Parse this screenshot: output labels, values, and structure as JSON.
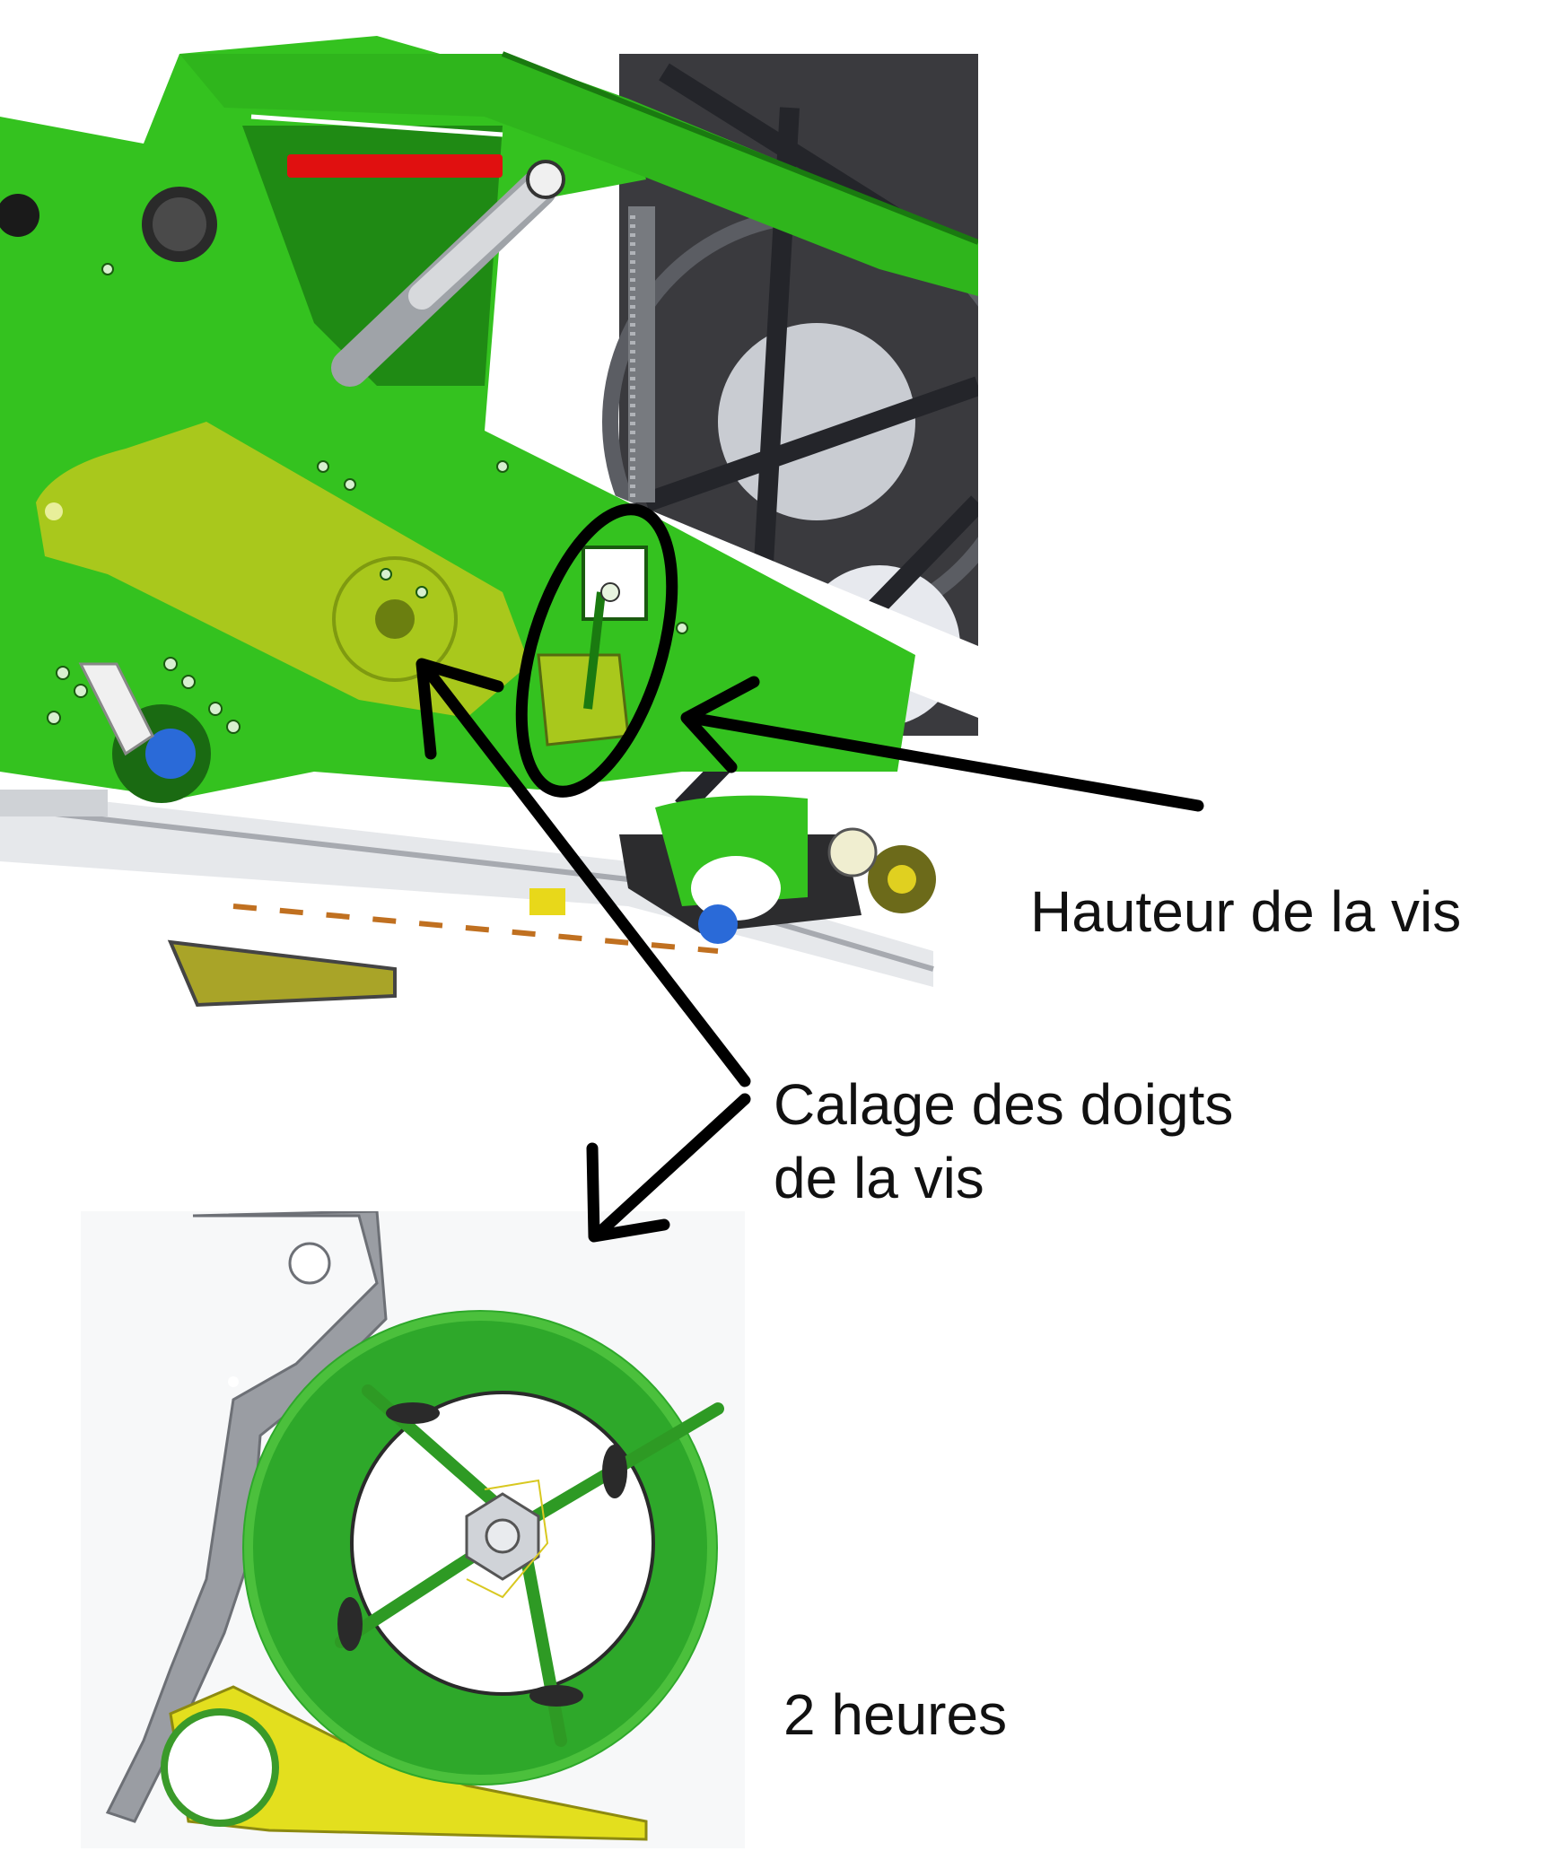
{
  "labels": {
    "auger_height": "Hauteur de la vis",
    "finger_timing_line1": "Calage des doigts",
    "finger_timing_line2": "de la vis",
    "finger_position": "2 heures"
  },
  "colors": {
    "frame_green": "#34c21f",
    "dark_green": "#1f8a14",
    "arm_yellow": "#a9c81c",
    "grey_steel": "#3a3a3e",
    "red_marker": "#e01010",
    "callout_black": "#000000",
    "detail_green": "#2ea82a",
    "detail_grey": "#9a9da3",
    "detail_yellow": "#e3df1e"
  },
  "icons": {
    "upper": "header-machine-illustration",
    "lower": "auger-finger-timing-detail",
    "ellipse": "callout-ellipse",
    "arrows": "callout-arrow"
  }
}
